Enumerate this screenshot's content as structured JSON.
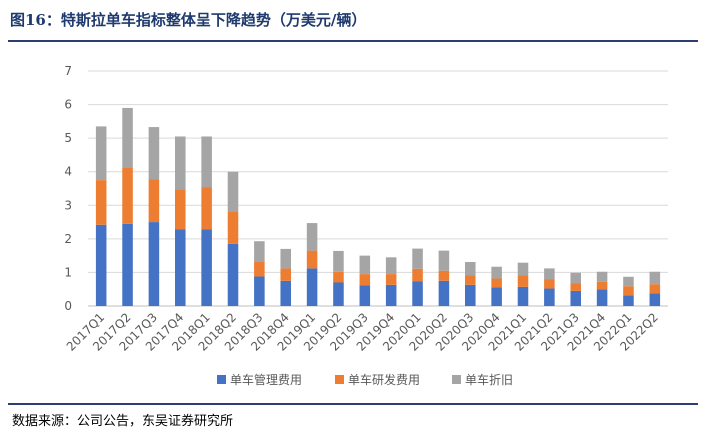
{
  "header": {
    "title": "图16：特斯拉单车指标整体呈下降趋势（万美元/辆）"
  },
  "footer": {
    "source": "数据来源：公司公告，东吴证券研究所"
  },
  "chart_data": {
    "type": "bar",
    "stacked": true,
    "title": "图16：特斯拉单车指标整体呈下降趋势（万美元/辆）",
    "ylim": [
      0,
      7
    ],
    "yticks": [
      0,
      1,
      2,
      3,
      4,
      5,
      6,
      7
    ],
    "grid": true,
    "legend_position": "bottom",
    "categories": [
      "2017Q1",
      "2017Q2",
      "2017Q3",
      "2017Q4",
      "2018Q1",
      "2018Q2",
      "2018Q3",
      "2018Q4",
      "2019Q1",
      "2019Q2",
      "2019Q3",
      "2019Q4",
      "2020Q1",
      "2020Q2",
      "2020Q3",
      "2020Q4",
      "2021Q1",
      "2021Q2",
      "2021Q3",
      "2021Q4",
      "2022Q1",
      "2022Q2"
    ],
    "series": [
      {
        "name": "单车管理费用",
        "color": "#4472c4",
        "values": [
          2.42,
          2.45,
          2.5,
          2.28,
          2.28,
          1.85,
          0.88,
          0.75,
          1.12,
          0.7,
          0.62,
          0.63,
          0.73,
          0.75,
          0.63,
          0.55,
          0.57,
          0.52,
          0.45,
          0.5,
          0.32,
          0.38
        ]
      },
      {
        "name": "单车研发费用",
        "color": "#ed7d31",
        "values": [
          1.33,
          1.68,
          1.28,
          1.2,
          1.25,
          0.95,
          0.43,
          0.37,
          0.53,
          0.32,
          0.33,
          0.32,
          0.38,
          0.3,
          0.28,
          0.27,
          0.35,
          0.27,
          0.22,
          0.22,
          0.27,
          0.27
        ]
      },
      {
        "name": "单车折旧",
        "color": "#a5a5a5",
        "values": [
          1.6,
          1.77,
          1.55,
          1.57,
          1.52,
          1.2,
          0.62,
          0.58,
          0.82,
          0.62,
          0.55,
          0.5,
          0.6,
          0.6,
          0.4,
          0.35,
          0.37,
          0.33,
          0.32,
          0.3,
          0.28,
          0.37
        ]
      }
    ]
  }
}
